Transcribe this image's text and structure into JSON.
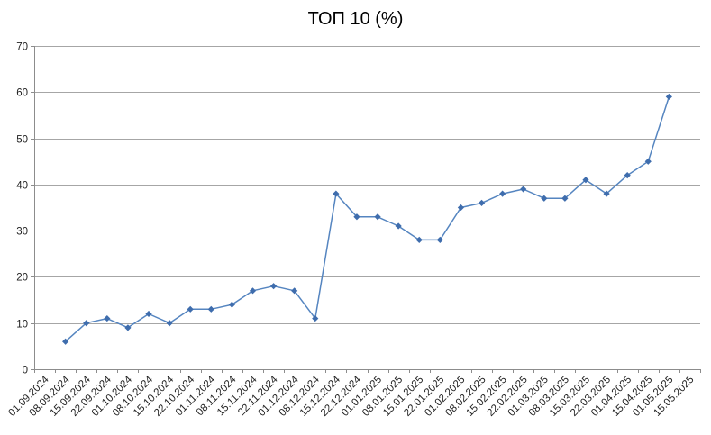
{
  "chart_data": {
    "type": "line",
    "title": "ТОП 10 (%)",
    "categories": [
      "01.09.2024",
      "08.09.2024",
      "15.09.2024",
      "22.09.2024",
      "01.10.2024",
      "08.10.2024",
      "15.10.2024",
      "22.10.2024",
      "01.11.2024",
      "08.11.2024",
      "15.11.2024",
      "22.11.2024",
      "01.12.2024",
      "08.12.2024",
      "15.12.2024",
      "22.12.2024",
      "01.01.2025",
      "08.01.2025",
      "15.01.2025",
      "22.01.2025",
      "01.02.2025",
      "08.02.2025",
      "15.02.2025",
      "22.02.2025",
      "01.03.2025",
      "08.03.2025",
      "15.03.2025",
      "22.03.2025",
      "01.04.2025",
      "15.04.2025",
      "01.05.2025",
      "15.05.2025"
    ],
    "series": [
      {
        "values": [
          null,
          6,
          10,
          11,
          9,
          12,
          10,
          13,
          13,
          14,
          17,
          18,
          17,
          11,
          38,
          33,
          33,
          31,
          28,
          28,
          35,
          36,
          38,
          39,
          37,
          37,
          41,
          38,
          42,
          45,
          59,
          null
        ]
      }
    ],
    "xlabel": "",
    "ylabel": "",
    "ylim": [
      0,
      70
    ],
    "ytick_step": 10,
    "ytick_labels": [
      "0",
      "10",
      "20",
      "30",
      "40",
      "50",
      "60",
      "70"
    ],
    "grid": "horizontal",
    "legend": "none",
    "marker": "diamond",
    "colors": {
      "line": "#5585C0",
      "marker": "#3F6DAD",
      "gridline": "#A6A6A6",
      "axis": "#8C8C8C",
      "tick_text": "#1F1F1F",
      "title_text": "#000000",
      "background": "#FFFFFF"
    }
  }
}
